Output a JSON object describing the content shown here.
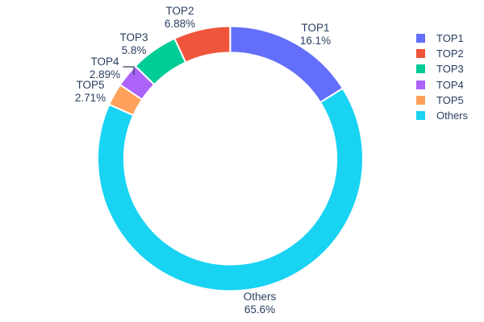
{
  "chart_data": {
    "type": "pie",
    "subtype": "donut",
    "hole": 0.8,
    "title": "",
    "legend_position": "right",
    "background_color": "#ffffff",
    "text_color": "#2a3f5f",
    "slices": [
      {
        "label": "TOP1",
        "value": 16.1,
        "pct_label": "16.1%",
        "color": "#636EFA"
      },
      {
        "label": "TOP2",
        "value": 6.88,
        "pct_label": "6.88%",
        "color": "#EF553B"
      },
      {
        "label": "TOP3",
        "value": 5.8,
        "pct_label": "5.8%",
        "color": "#00CC96"
      },
      {
        "label": "TOP4",
        "value": 2.89,
        "pct_label": "2.89%",
        "color": "#AB63FA"
      },
      {
        "label": "TOP5",
        "value": 2.71,
        "pct_label": "2.71%",
        "color": "#FFA15A"
      },
      {
        "label": "Others",
        "value": 65.6,
        "pct_label": "65.6%",
        "color": "#19D3F3"
      }
    ]
  }
}
